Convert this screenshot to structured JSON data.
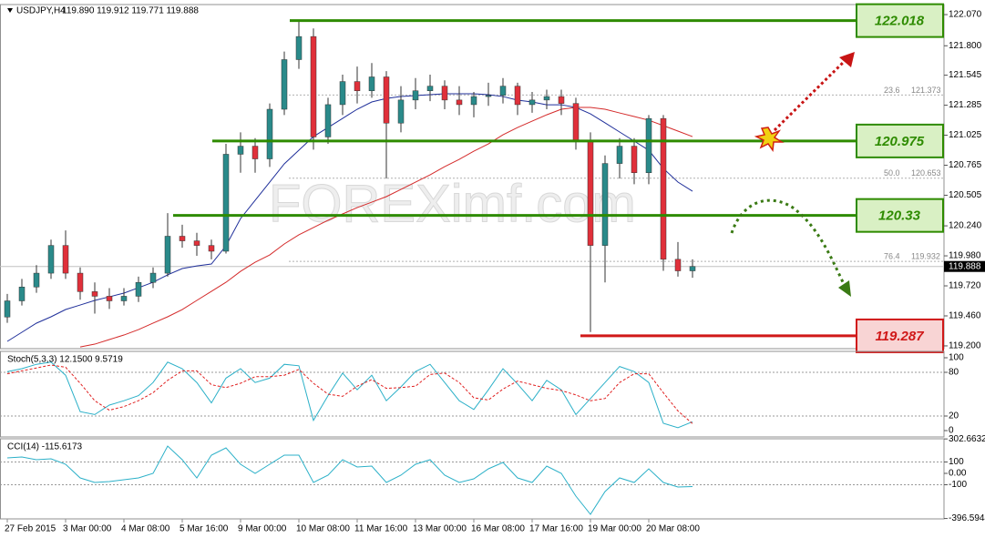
{
  "chart_data": [
    {
      "type": "candlestick",
      "title": "USDJPY,H4",
      "quote": "119.890 119.912 119.771 119.888",
      "watermark": "FOREXimf.com",
      "categories": [
        "27 Feb 2015",
        null,
        null,
        null,
        "3 Mar 00:00",
        null,
        null,
        null,
        "4 Mar 08:00",
        null,
        null,
        null,
        "5 Mar 16:00",
        null,
        null,
        null,
        "9 Mar 00:00",
        null,
        null,
        null,
        "10 Mar 08:00",
        null,
        null,
        null,
        "11 Mar 16:00",
        null,
        null,
        null,
        "13 Mar 00:00",
        null,
        null,
        null,
        "16 Mar 08:00",
        null,
        null,
        null,
        "17 Mar 16:00",
        null,
        null,
        null,
        "19 Mar 00:00",
        null,
        null,
        null,
        "20 Mar 08:00",
        null,
        null,
        null
      ],
      "open": [
        119.45,
        119.59,
        119.71,
        119.83,
        120.07,
        119.83,
        119.67,
        119.63,
        119.59,
        119.63,
        119.75,
        119.83,
        120.15,
        120.11,
        120.07,
        120.02,
        120.86,
        120.93,
        120.82,
        121.25,
        121.68,
        121.88,
        121.01,
        121.29,
        121.49,
        121.41,
        121.53,
        121.13,
        121.33,
        121.41,
        121.45,
        121.33,
        121.29,
        121.36,
        121.37,
        121.45,
        121.29,
        121.33,
        121.36,
        121.3,
        120.97,
        120.07,
        120.78,
        120.93,
        120.7,
        121.17,
        119.95,
        119.85
      ],
      "high": [
        119.65,
        119.78,
        119.9,
        120.12,
        120.2,
        119.88,
        119.75,
        119.7,
        119.7,
        119.8,
        119.88,
        120.35,
        120.25,
        120.18,
        120.12,
        120.95,
        121.05,
        121.0,
        121.3,
        121.75,
        122.02,
        121.95,
        121.35,
        121.55,
        121.62,
        121.65,
        121.58,
        121.45,
        121.52,
        121.55,
        121.5,
        121.45,
        121.4,
        121.48,
        121.52,
        121.48,
        121.4,
        121.42,
        121.42,
        121.35,
        121.05,
        120.85,
        121.0,
        121.0,
        121.2,
        121.2,
        120.1,
        119.95
      ],
      "low": [
        119.4,
        119.55,
        119.66,
        119.78,
        119.78,
        119.6,
        119.48,
        119.52,
        119.55,
        119.58,
        119.7,
        119.8,
        120.05,
        119.98,
        119.95,
        120.0,
        120.7,
        120.7,
        120.75,
        121.2,
        121.6,
        120.9,
        120.95,
        121.2,
        121.3,
        121.35,
        120.65,
        121.05,
        121.25,
        121.32,
        121.25,
        121.2,
        121.18,
        121.28,
        121.3,
        121.2,
        121.22,
        121.25,
        121.2,
        120.9,
        119.32,
        119.75,
        120.65,
        120.6,
        120.6,
        119.85,
        119.8,
        119.79
      ],
      "close": [
        119.59,
        119.71,
        119.83,
        120.07,
        119.83,
        119.67,
        119.63,
        119.59,
        119.63,
        119.75,
        119.83,
        120.15,
        120.11,
        120.07,
        120.02,
        120.86,
        120.93,
        120.82,
        121.25,
        121.68,
        121.88,
        121.01,
        121.29,
        121.49,
        121.41,
        121.53,
        121.13,
        121.33,
        121.41,
        121.45,
        121.33,
        121.29,
        121.36,
        121.37,
        121.45,
        121.29,
        121.33,
        121.36,
        121.3,
        120.97,
        120.07,
        120.78,
        120.93,
        120.7,
        121.17,
        119.95,
        119.85,
        119.888
      ],
      "up_color": "#2a8a8a",
      "down_color": "#e0303a",
      "wick_color": "#333333",
      "moving_averages": [
        {
          "color": "#1f2f9a",
          "values": [
            119.239,
            119.318,
            119.397,
            119.452,
            119.515,
            119.554,
            119.594,
            119.625,
            119.657,
            119.704,
            119.751,
            119.815,
            119.87,
            119.893,
            119.909,
            120.067,
            120.303,
            120.461,
            120.619,
            120.777,
            120.895,
            121.013,
            121.092,
            121.171,
            121.25,
            121.313,
            121.344,
            121.36,
            121.368,
            121.376,
            121.384,
            121.384,
            121.384,
            121.376,
            121.36,
            121.329,
            121.313,
            121.289,
            121.289,
            121.266,
            121.21,
            121.132,
            121.053,
            120.974,
            120.895,
            120.737,
            120.619,
            120.54
          ]
        },
        {
          "color": "#d42a2a",
          "values": [
            null,
            null,
            null,
            null,
            null,
            119.191,
            119.215,
            119.255,
            119.294,
            119.341,
            119.397,
            119.452,
            119.515,
            119.594,
            119.672,
            119.751,
            119.846,
            119.925,
            119.988,
            120.083,
            120.162,
            120.225,
            120.288,
            120.343,
            120.398,
            120.445,
            120.493,
            120.556,
            120.619,
            120.682,
            120.753,
            120.816,
            120.887,
            120.95,
            121.029,
            121.092,
            121.147,
            121.202,
            121.25,
            121.266,
            121.266,
            121.25,
            121.218,
            121.187,
            121.155,
            121.108,
            121.061,
            121.013
          ]
        }
      ],
      "levels": [
        {
          "value": 122.018,
          "color": "#2e8b00",
          "fill": "#d9f0c4"
        },
        {
          "value": 120.975,
          "color": "#2e8b00",
          "fill": "#d9f0c4"
        },
        {
          "value": 120.33,
          "color": "#2e8b00",
          "fill": "#d9f0c4"
        },
        {
          "value": 119.287,
          "color": "#d01818",
          "fill": "#f8d4d4"
        }
      ],
      "fibonacci": [
        {
          "ratio": "23.6",
          "value": 121.373
        },
        {
          "ratio": "50.0",
          "value": 120.653
        },
        {
          "ratio": "76.4",
          "value": 119.932
        }
      ],
      "last_price": 119.888,
      "ylim": [
        119.176,
        122.157
      ],
      "yticks": [
        {
          "value": 122.07,
          "label": "122.070"
        },
        {
          "value": 121.8,
          "label": "121.800"
        },
        121.545,
        121.285,
        121.025,
        120.765,
        120.505,
        {
          "value": 120.24,
          "label": "120.240"
        },
        {
          "value": 119.98,
          "label": "119.980"
        },
        {
          "value": 119.72,
          "label": "119.720"
        },
        {
          "value": 119.46,
          "label": "119.460"
        },
        {
          "value": 119.2,
          "label": "119.200"
        }
      ]
    },
    {
      "type": "line",
      "title": "Stoch(5,3,3) 12.1500 9.5719",
      "series": [
        {
          "color": "#2bb0c8",
          "style": "solid",
          "values": [
            81,
            85,
            91,
            94,
            76,
            26,
            22,
            35,
            41,
            48,
            66,
            94,
            85,
            66,
            38,
            72,
            85,
            66,
            72,
            91,
            89,
            14,
            48,
            79,
            56,
            76,
            41,
            60,
            81,
            91,
            66,
            41,
            29,
            56,
            85,
            64,
            41,
            69,
            56,
            22,
            44,
            66,
            88,
            81,
            66,
            10,
            4,
            12.15
          ]
        },
        {
          "color": "#e02020",
          "style": "dashed",
          "values": [
            78,
            82,
            86,
            90,
            87,
            65,
            41,
            28,
            33,
            41,
            52,
            69,
            82,
            82,
            63,
            59,
            65,
            74,
            74,
            76,
            84,
            65,
            50,
            47,
            61,
            70,
            58,
            59,
            61,
            77,
            79,
            66,
            45,
            42,
            57,
            68,
            63,
            58,
            55,
            49,
            41,
            44,
            66,
            78,
            78,
            52,
            27,
            9.5719
          ]
        }
      ],
      "dotted_levels": [
        80,
        20
      ],
      "ylim": [
        -8.75,
        108.75
      ],
      "yticks": [
        100,
        80,
        20,
        0
      ]
    },
    {
      "type": "line",
      "title": "CCI(14) -115.6173",
      "series": [
        {
          "color": "#2bb0c8",
          "style": "solid",
          "values": [
            136,
            144,
            120,
            128,
            80,
            -40,
            -80,
            -72,
            -56,
            -40,
            0,
            240,
            120,
            -40,
            160,
            224,
            80,
            0,
            80,
            160,
            160,
            -80,
            -16,
            120,
            56,
            64,
            -80,
            -16,
            80,
            120,
            -16,
            -80,
            -48,
            40,
            96,
            -40,
            -80,
            64,
            0,
            -200,
            -360,
            -160,
            -40,
            -80,
            40,
            -80,
            -120,
            -115.6173
          ]
        }
      ],
      "dotted_levels": [
        100,
        -100
      ],
      "ylim": [
        -400,
        304
      ],
      "yticks": [
        302.6632,
        100,
        {
          "value": 0,
          "label": "0.00"
        },
        -100,
        -396.5944
      ]
    }
  ]
}
